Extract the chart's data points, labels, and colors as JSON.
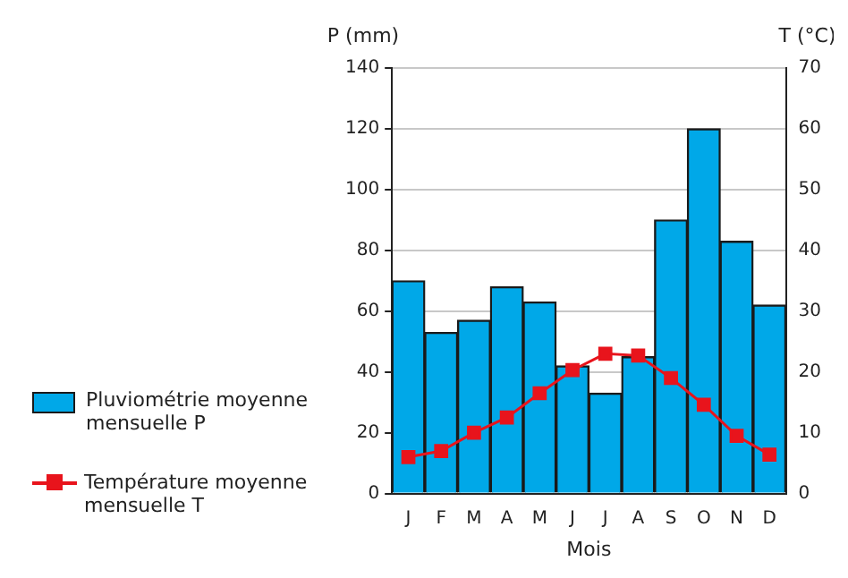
{
  "chart_data": {
    "type": "bar",
    "xlabel": "Mois",
    "ylabel": "P (mm)",
    "y2label": "T (°C)",
    "categories": [
      "J",
      "F",
      "M",
      "A",
      "M",
      "J",
      "J",
      "A",
      "S",
      "O",
      "N",
      "D"
    ],
    "series": [
      {
        "name": "Pluviométrie moyenne mensuelle P",
        "color": "#00a8e8",
        "values": [
          70,
          53,
          57,
          68,
          63,
          42,
          33,
          45,
          90,
          120,
          83,
          62
        ]
      },
      {
        "name": "Température moyenne mensuelle T",
        "type": "line",
        "axis": "y2",
        "color": "#e8141c",
        "marker": "square",
        "values": [
          6,
          7,
          10,
          12.5,
          16.5,
          20.3,
          23,
          22.7,
          19,
          14.6,
          9.5,
          6.4
        ]
      }
    ],
    "ylim": [
      0,
      140
    ],
    "yticks": [
      0,
      20,
      40,
      60,
      80,
      100,
      120,
      140
    ],
    "y2lim": [
      0,
      70
    ],
    "y2ticks": [
      0,
      10,
      20,
      30,
      40,
      50,
      60,
      70
    ],
    "grid": "y",
    "legend": "left"
  }
}
